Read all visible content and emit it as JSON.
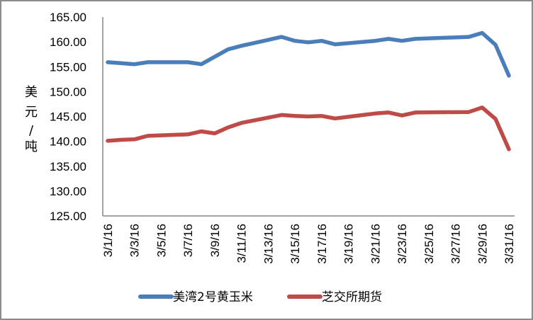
{
  "chart_data": {
    "type": "line",
    "title": "",
    "xlabel": "",
    "ylabel": "美元/吨",
    "ylim": [
      125,
      165
    ],
    "yticks": [
      "125.00",
      "130.00",
      "135.00",
      "140.00",
      "145.00",
      "150.00",
      "155.00",
      "160.00",
      "165.00"
    ],
    "xtick_labels": [
      "3/1/16",
      "3/3/16",
      "3/5/16",
      "3/7/16",
      "3/9/16",
      "3/11/16",
      "3/13/16",
      "3/15/16",
      "3/17/16",
      "3/19/16",
      "3/21/16",
      "3/23/16",
      "3/25/16",
      "3/27/16",
      "3/29/16",
      "3/31/16"
    ],
    "grid": false,
    "legend_position": "bottom",
    "x": [
      "3/1/16",
      "3/2/16",
      "3/3/16",
      "3/4/16",
      "3/7/16",
      "3/8/16",
      "3/9/16",
      "3/10/16",
      "3/11/16",
      "3/14/16",
      "3/15/16",
      "3/16/16",
      "3/17/16",
      "3/18/16",
      "3/21/16",
      "3/22/16",
      "3/23/16",
      "3/24/16",
      "3/28/16",
      "3/29/16",
      "3/30/16",
      "3/31/16"
    ],
    "x_day": [
      1,
      2,
      3,
      4,
      7,
      8,
      9,
      10,
      11,
      14,
      15,
      16,
      17,
      18,
      21,
      22,
      23,
      24,
      28,
      29,
      30,
      31
    ],
    "series": [
      {
        "name": "美湾2号黄玉米",
        "color": "#4a7ebb",
        "values": [
          155.9,
          155.7,
          155.5,
          155.9,
          155.9,
          155.5,
          157.0,
          158.5,
          159.2,
          161.0,
          160.2,
          159.9,
          160.2,
          159.5,
          160.2,
          160.6,
          160.2,
          160.6,
          161.0,
          161.8,
          159.4,
          153.2
        ]
      },
      {
        "name": "芝交所期货",
        "color": "#be4b48",
        "values": [
          140.1,
          140.3,
          140.4,
          141.1,
          141.4,
          142.0,
          141.6,
          142.8,
          143.7,
          145.3,
          145.1,
          145.0,
          145.1,
          144.6,
          145.6,
          145.8,
          145.2,
          145.8,
          145.9,
          146.8,
          144.5,
          138.4
        ]
      }
    ]
  },
  "axis": {
    "ylabel_chars": [
      "美",
      "元",
      "/",
      "吨"
    ]
  },
  "legend": {
    "items": [
      {
        "label": "美湾2号黄玉米",
        "color": "#4a7ebb"
      },
      {
        "label": "芝交所期货",
        "color": "#be4b48"
      }
    ]
  }
}
